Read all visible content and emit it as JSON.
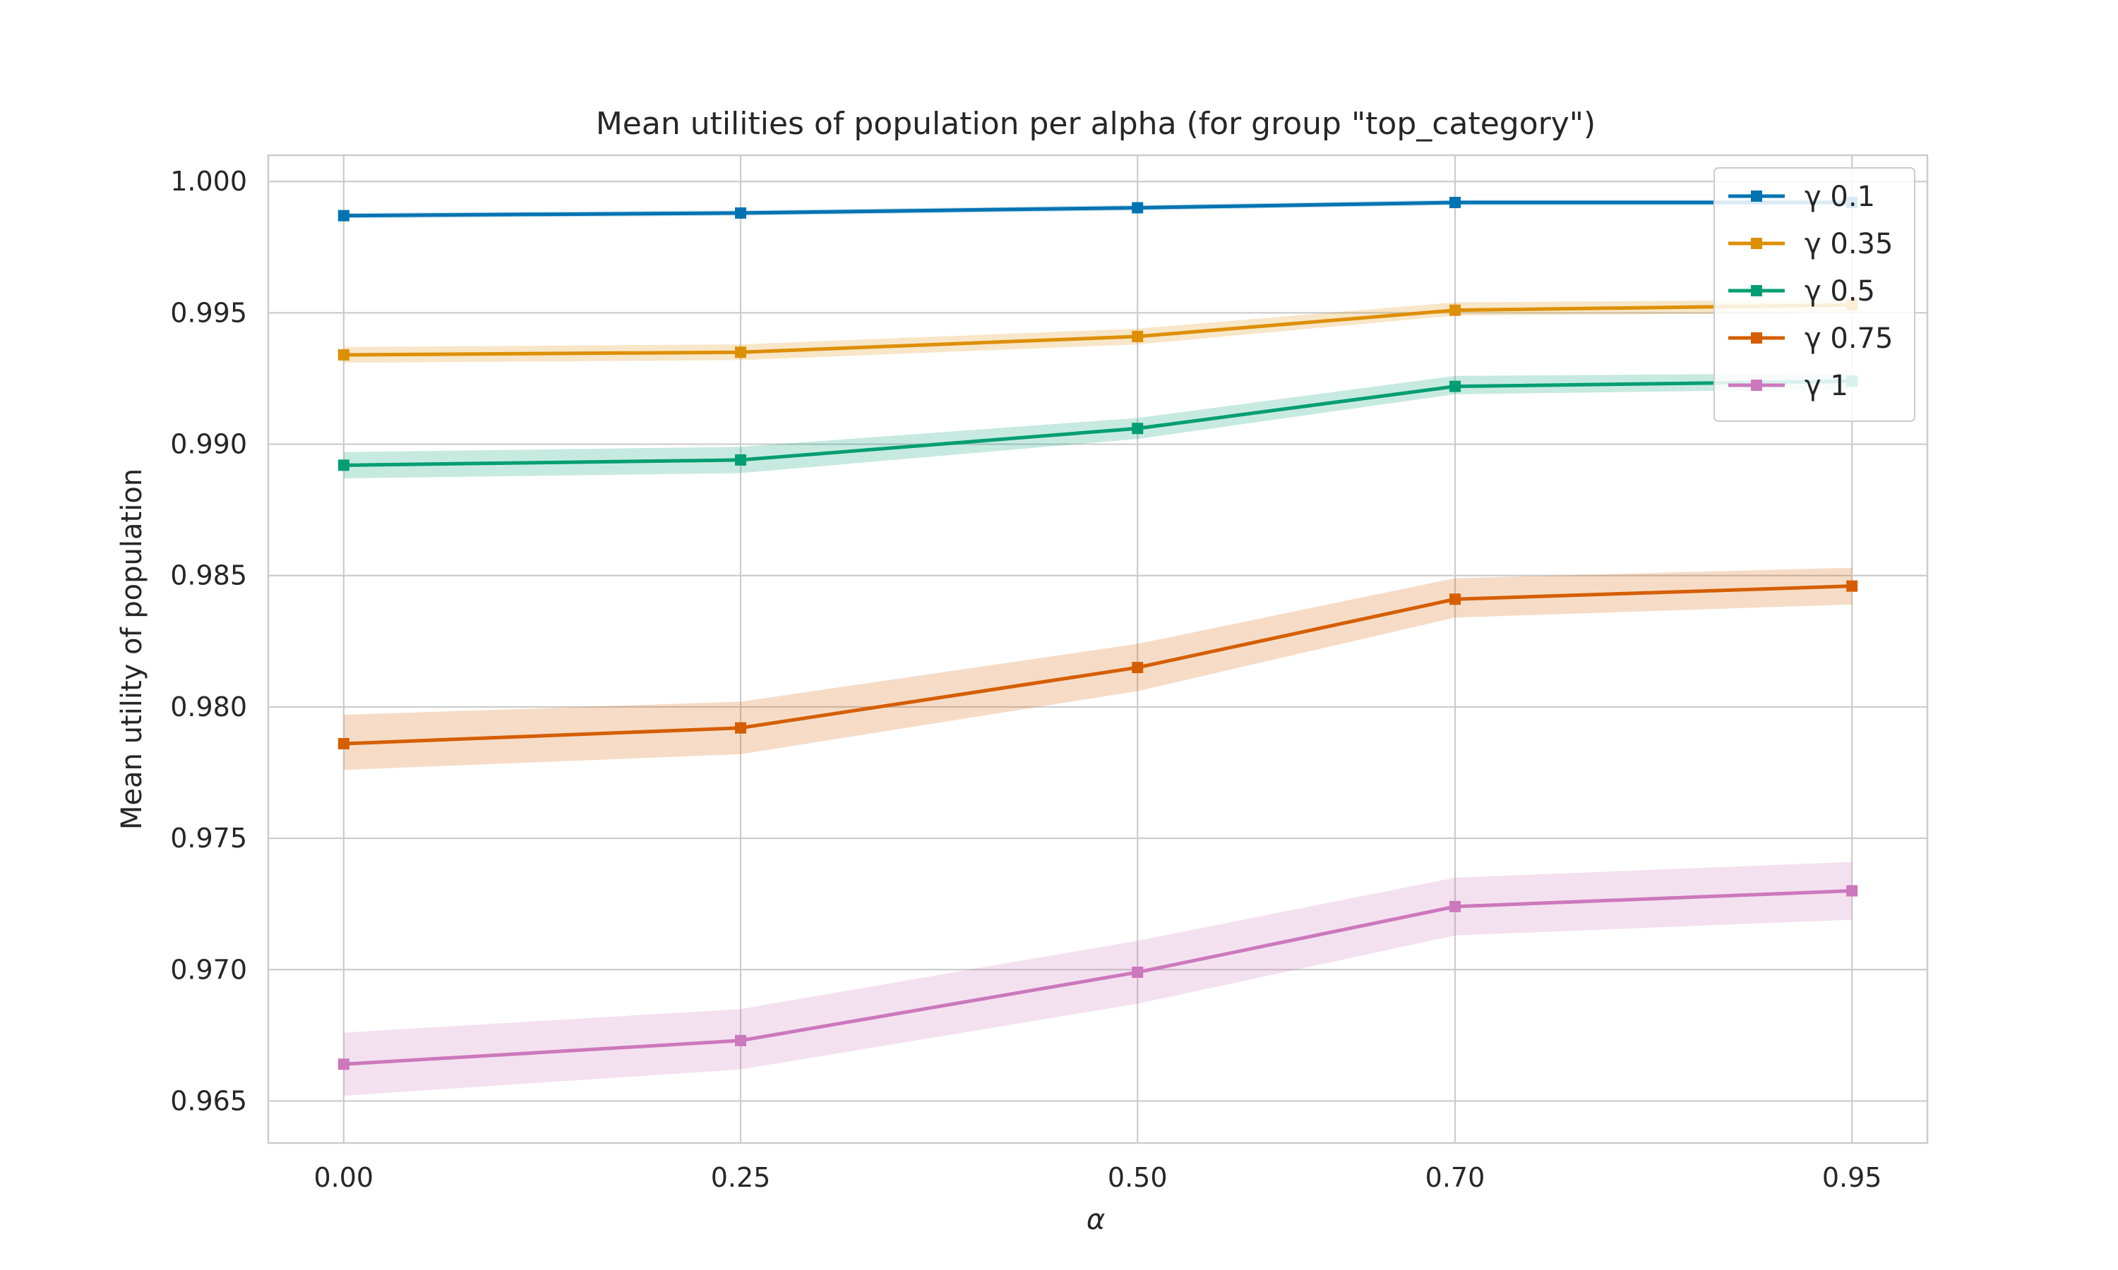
{
  "chart_data": {
    "type": "line",
    "title": "Mean utilities of population per alpha (for group \"top_category\")",
    "xlabel": "α",
    "ylabel": "Mean utility of population",
    "x": [
      0.0,
      0.25,
      0.5,
      0.7,
      0.95
    ],
    "x_tick_labels": [
      "0.00",
      "0.25",
      "0.50",
      "0.70",
      "0.95"
    ],
    "y_ticks": [
      0.965,
      0.97,
      0.975,
      0.98,
      0.985,
      0.99,
      0.995,
      1.0
    ],
    "y_tick_labels": [
      "0.965",
      "0.970",
      "0.975",
      "0.980",
      "0.985",
      "0.990",
      "0.995",
      "1.000"
    ],
    "ylim": [
      0.9634,
      1.001
    ],
    "grid": true,
    "legend_position": "top-right",
    "marker": "square",
    "series": [
      {
        "name": "γ 0.1",
        "color": "#0173b2",
        "values": [
          0.9987,
          0.9988,
          0.999,
          0.9992,
          0.9992
        ],
        "lower": [
          0.9986,
          0.9987,
          0.9989,
          0.9991,
          0.9991
        ],
        "upper": [
          0.9988,
          0.9989,
          0.9991,
          0.9993,
          0.9993
        ]
      },
      {
        "name": "γ 0.35",
        "color": "#de8f05",
        "values": [
          0.9934,
          0.9935,
          0.9941,
          0.9951,
          0.9953
        ],
        "lower": [
          0.9931,
          0.9932,
          0.9938,
          0.9949,
          0.995
        ],
        "upper": [
          0.9937,
          0.9938,
          0.9944,
          0.9954,
          0.9955
        ]
      },
      {
        "name": "γ 0.5",
        "color": "#029e73",
        "values": [
          0.9892,
          0.9894,
          0.9906,
          0.9922,
          0.9924
        ],
        "lower": [
          0.9887,
          0.9889,
          0.9902,
          0.9919,
          0.9921
        ],
        "upper": [
          0.9897,
          0.9899,
          0.991,
          0.9926,
          0.9927
        ]
      },
      {
        "name": "γ 0.75",
        "color": "#d55e00",
        "values": [
          0.9786,
          0.9792,
          0.9815,
          0.9841,
          0.9846
        ],
        "lower": [
          0.9776,
          0.9782,
          0.9806,
          0.9834,
          0.9839
        ],
        "upper": [
          0.9797,
          0.9802,
          0.9824,
          0.9849,
          0.9853
        ]
      },
      {
        "name": "γ 1",
        "color": "#cc78bc",
        "values": [
          0.9664,
          0.9673,
          0.9699,
          0.9724,
          0.973
        ],
        "lower": [
          0.9652,
          0.9662,
          0.9687,
          0.9713,
          0.9719
        ],
        "upper": [
          0.9676,
          0.9685,
          0.9711,
          0.9735,
          0.9741
        ]
      }
    ]
  }
}
